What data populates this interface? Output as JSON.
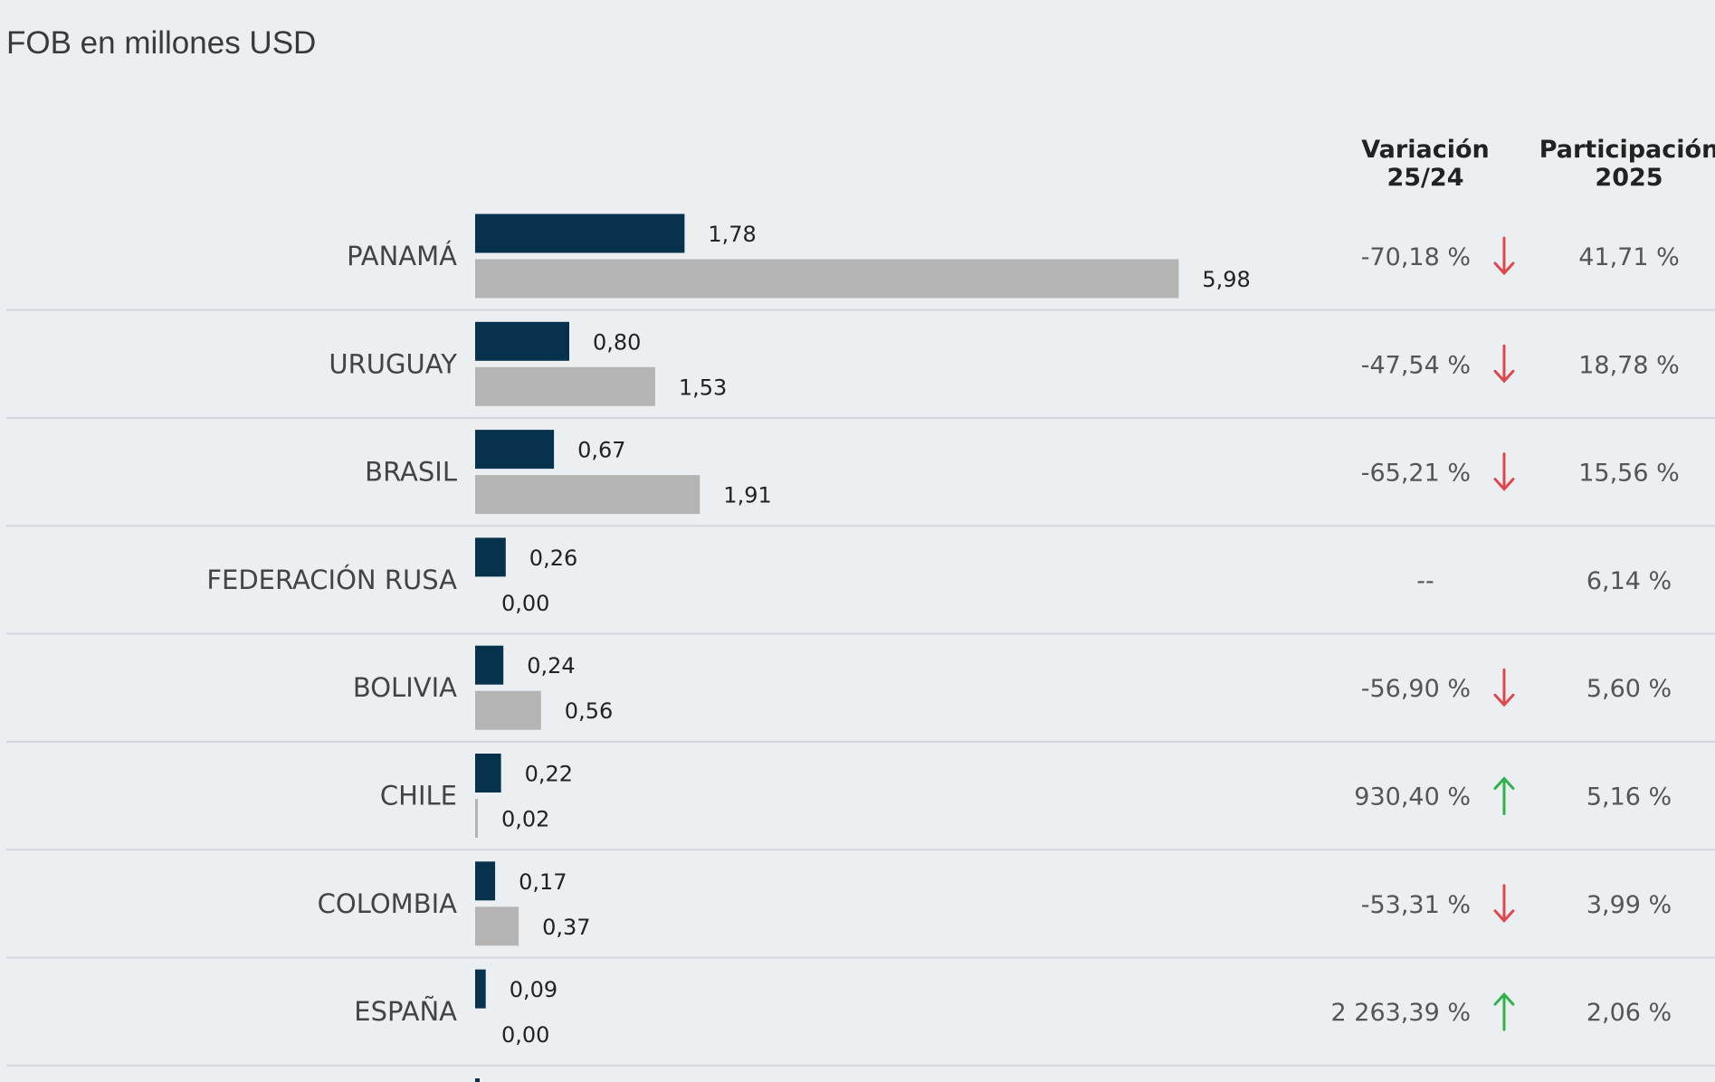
{
  "chart_data": {
    "type": "bar",
    "orientation": "horizontal",
    "subtitle": "FOB en millones USD",
    "columns": {
      "variation_header": [
        "Variación",
        "25/24"
      ],
      "share_header": [
        "Participación",
        "2025"
      ]
    },
    "colors": {
      "series_2025": "#06324d",
      "series_2024": "#b4b4b4",
      "arrow_up": "#2fb34a",
      "arrow_down": "#e0474c",
      "divider": "#d3d7db"
    },
    "rows": [
      {
        "country": "PANAMÁ",
        "value_2025": 1.78,
        "value_2024": 5.98,
        "label_2025": "1,78",
        "label_2024": "5,98",
        "variation": "-70,18 %",
        "direction": "down",
        "share": "41,71 %"
      },
      {
        "country": "URUGUAY",
        "value_2025": 0.8,
        "value_2024": 1.53,
        "label_2025": "0,80",
        "label_2024": "1,53",
        "variation": "-47,54 %",
        "direction": "down",
        "share": "18,78 %"
      },
      {
        "country": "BRASIL",
        "value_2025": 0.67,
        "value_2024": 1.91,
        "label_2025": "0,67",
        "label_2024": "1,91",
        "variation": "-65,21 %",
        "direction": "down",
        "share": "15,56 %"
      },
      {
        "country": "FEDERACIÓN RUSA",
        "value_2025": 0.26,
        "value_2024": 0.0,
        "label_2025": "0,26",
        "label_2024": "0,00",
        "variation": "--",
        "direction": "none",
        "share": "6,14 %"
      },
      {
        "country": "BOLIVIA",
        "value_2025": 0.24,
        "value_2024": 0.56,
        "label_2025": "0,24",
        "label_2024": "0,56",
        "variation": "-56,90 %",
        "direction": "down",
        "share": "5,60 %"
      },
      {
        "country": "CHILE",
        "value_2025": 0.22,
        "value_2024": 0.02,
        "label_2025": "0,22",
        "label_2024": "0,02",
        "variation": "930,40 %",
        "direction": "up",
        "share": "5,16 %"
      },
      {
        "country": "COLOMBIA",
        "value_2025": 0.17,
        "value_2024": 0.37,
        "label_2025": "0,17",
        "label_2024": "0,37",
        "variation": "-53,31 %",
        "direction": "down",
        "share": "3,99 %"
      },
      {
        "country": "ESPAÑA",
        "value_2025": 0.09,
        "value_2024": 0.0,
        "label_2025": "0,09",
        "label_2024": "0,00",
        "variation": "2 263,39 %",
        "direction": "up",
        "share": "2,06 %"
      }
    ]
  }
}
